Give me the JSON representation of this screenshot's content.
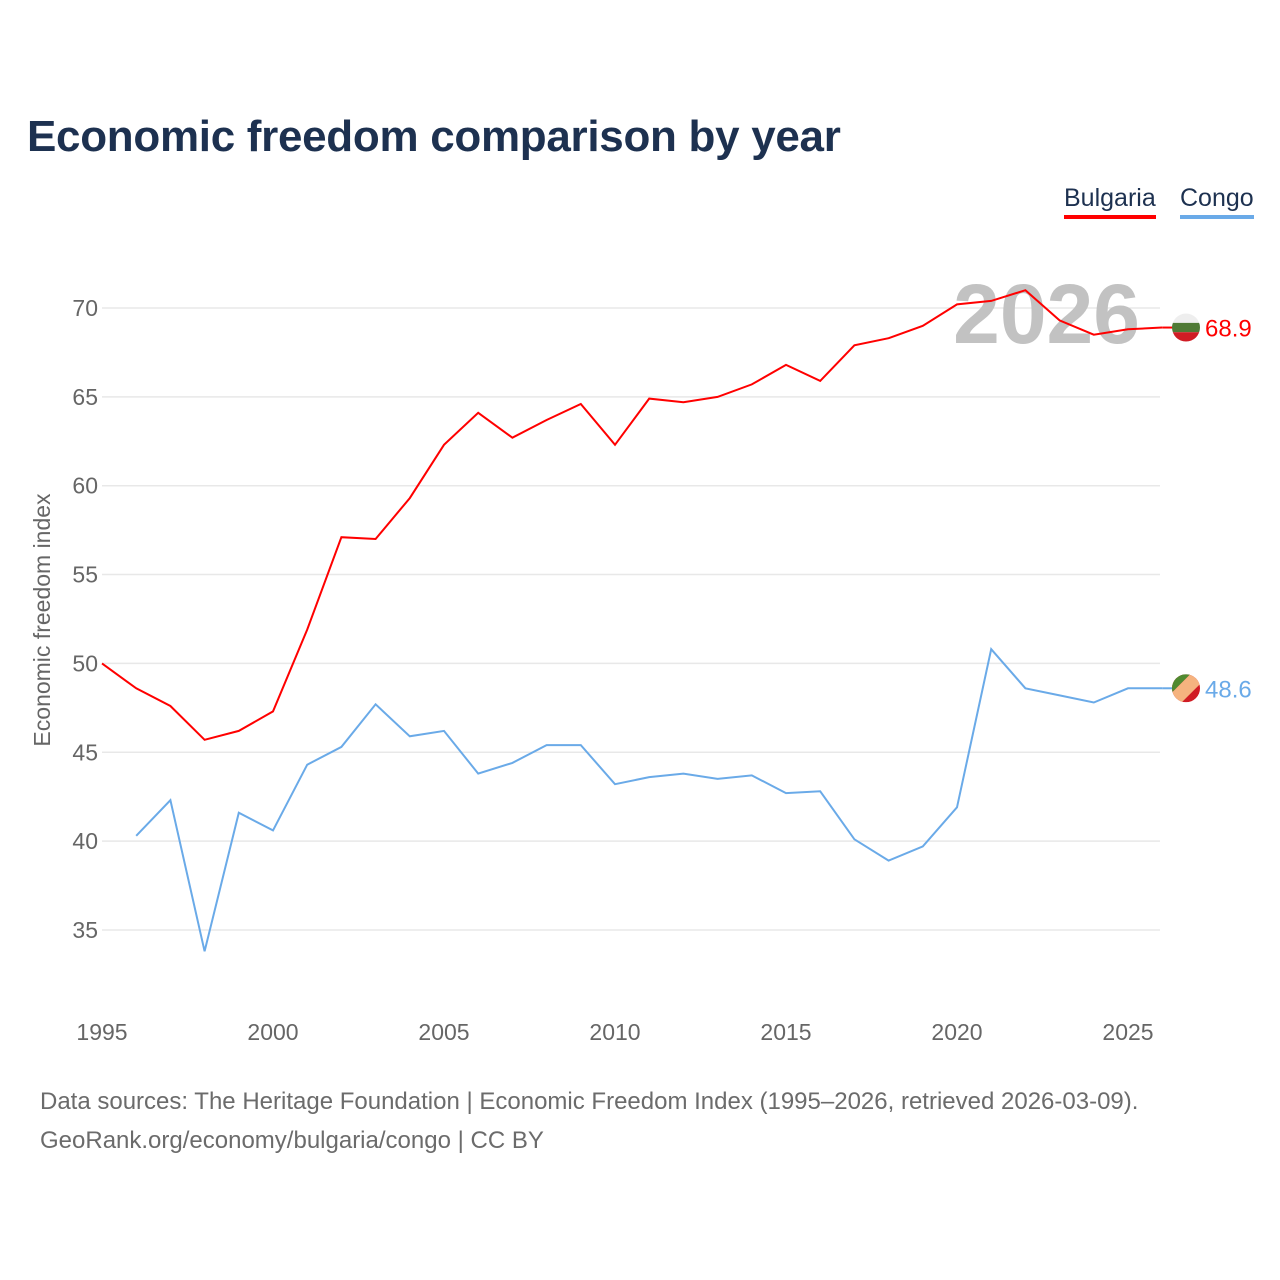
{
  "title": "Economic freedom comparison by year",
  "footer": {
    "line1": "Data sources: The Heritage Foundation | Economic Freedom Index (1995–2026, retrieved 2026-03-09).",
    "line2": "GeoRank.org/economy/bulgaria/congo | CC BY"
  },
  "chart_data": {
    "type": "line",
    "title": "Economic freedom comparison by year",
    "xlabel": "",
    "ylabel": "Economic freedom index",
    "xlim": [
      1995,
      2026
    ],
    "ylim": [
      31.5,
      72.5
    ],
    "xticks": [
      1995,
      2000,
      2005,
      2010,
      2015,
      2020,
      2025
    ],
    "yticks": [
      35,
      40,
      45,
      50,
      55,
      60,
      65,
      70
    ],
    "grid": true,
    "legend_position": "top-right",
    "watermark_year": "2026",
    "series": [
      {
        "name": "Bulgaria",
        "color": "#ff0000",
        "end_label": "68.9",
        "flag": "bulgaria-flag",
        "x": [
          1995,
          1996,
          1997,
          1998,
          1999,
          2000,
          2001,
          2002,
          2003,
          2004,
          2005,
          2006,
          2007,
          2008,
          2009,
          2010,
          2011,
          2012,
          2013,
          2014,
          2015,
          2016,
          2017,
          2018,
          2019,
          2020,
          2021,
          2022,
          2023,
          2024,
          2025,
          2026
        ],
        "values": [
          50.0,
          48.6,
          47.6,
          45.7,
          46.2,
          47.3,
          51.9,
          57.1,
          57.0,
          59.3,
          62.3,
          64.1,
          62.7,
          63.7,
          64.6,
          62.3,
          64.9,
          64.7,
          65.0,
          65.7,
          66.8,
          65.9,
          67.9,
          68.3,
          69.0,
          70.2,
          70.4,
          71.0,
          69.3,
          68.5,
          68.8,
          68.9
        ]
      },
      {
        "name": "Congo",
        "color": "#6aaae8",
        "end_label": "48.6",
        "flag": "congo-flag",
        "x": [
          1996,
          1997,
          1998,
          1999,
          2000,
          2001,
          2002,
          2003,
          2004,
          2005,
          2006,
          2007,
          2008,
          2009,
          2010,
          2011,
          2012,
          2013,
          2014,
          2015,
          2016,
          2017,
          2018,
          2019,
          2020,
          2021,
          2022,
          2023,
          2024,
          2025,
          2026
        ],
        "values": [
          40.3,
          42.3,
          33.8,
          41.6,
          40.6,
          44.3,
          45.3,
          47.7,
          45.9,
          46.2,
          43.8,
          44.4,
          45.4,
          45.4,
          43.2,
          43.6,
          43.8,
          43.5,
          43.7,
          42.7,
          42.8,
          40.1,
          38.9,
          39.7,
          41.9,
          50.8,
          48.6,
          48.2,
          47.8,
          48.6,
          48.6
        ]
      }
    ]
  }
}
